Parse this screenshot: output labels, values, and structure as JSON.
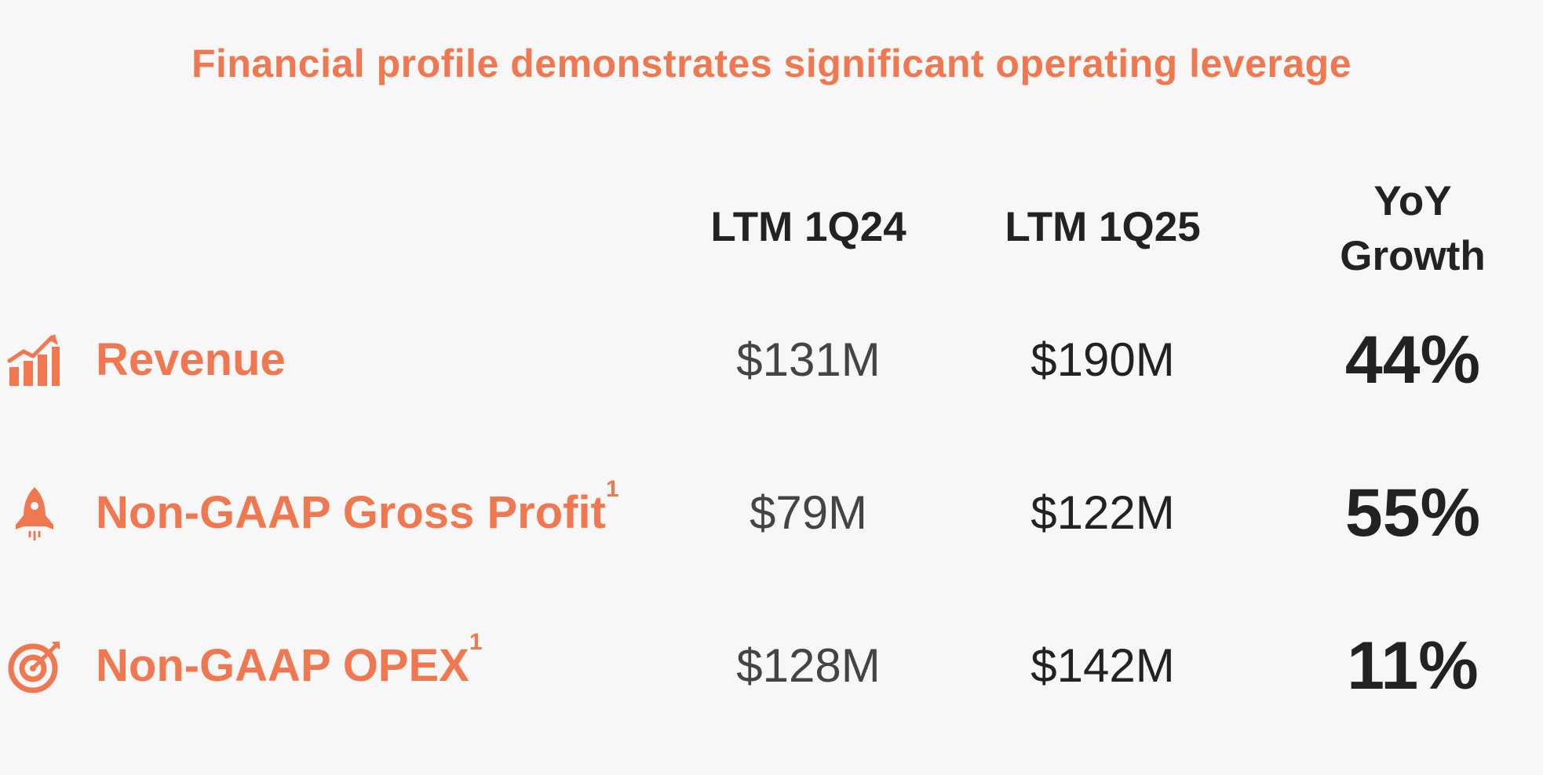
{
  "title": "Financial profile demonstrates significant operating leverage",
  "columns": {
    "c1": "LTM 1Q24",
    "c2": "LTM 1Q25",
    "c3_line1": "YoY",
    "c3_line2": "Growth"
  },
  "accent_color": "#f07850",
  "rows": [
    {
      "icon": "growth-chart-icon",
      "label": "Revenue",
      "sup": "",
      "ltm_1q24": "$131M",
      "ltm_1q25": "$190M",
      "yoy": "44%"
    },
    {
      "icon": "rocket-icon",
      "label": "Non-GAAP Gross Profit",
      "sup": "1",
      "ltm_1q24": "$79M",
      "ltm_1q25": "$122M",
      "yoy": "55%"
    },
    {
      "icon": "target-icon",
      "label": "Non-GAAP OPEX",
      "sup": "1",
      "ltm_1q24": "$128M",
      "ltm_1q25": "$142M",
      "yoy": "11%"
    }
  ]
}
